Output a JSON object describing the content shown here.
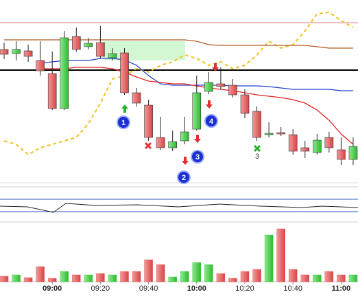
{
  "chart_data": {
    "type": "candlestick",
    "categories": [
      null,
      null,
      null,
      null,
      "09:00",
      null,
      null,
      null,
      "09:20",
      null,
      null,
      null,
      "09:40",
      null,
      null,
      null,
      "10:00",
      null,
      null,
      null,
      "10:20",
      null,
      null,
      null,
      "10:40",
      null,
      null,
      null,
      "11:00",
      null
    ],
    "open": [
      198,
      192,
      196,
      182,
      163,
      112,
      217,
      202,
      208,
      186,
      193,
      135,
      117,
      70,
      55,
      65,
      82,
      137,
      148,
      146,
      132,
      108,
      74,
      77,
      74,
      55,
      48,
      70,
      52,
      38
    ],
    "high": [
      208,
      210,
      205,
      210,
      195,
      225,
      230,
      215,
      232,
      200,
      200,
      142,
      125,
      100,
      80,
      100,
      160,
      165,
      172,
      155,
      140,
      115,
      92,
      85,
      82,
      65,
      75,
      78,
      70,
      70
    ],
    "low": [
      184,
      182,
      180,
      160,
      110,
      110,
      195,
      198,
      185,
      182,
      132,
      115,
      65,
      52,
      50,
      60,
      80,
      133,
      140,
      128,
      98,
      65,
      70,
      72,
      45,
      40,
      45,
      48,
      30,
      30
    ],
    "close": [
      191,
      198,
      188,
      167,
      112,
      215,
      198,
      207,
      188,
      192,
      135,
      120,
      70,
      55,
      64,
      78,
      135,
      150,
      144,
      132,
      105,
      70,
      76,
      75,
      50,
      50,
      66,
      55,
      38,
      57
    ],
    "volume": [
      8,
      10,
      6,
      22,
      5,
      15,
      10,
      10,
      12,
      10,
      15,
      15,
      32,
      25,
      7,
      15,
      28,
      25,
      12,
      5,
      15,
      18,
      68,
      77,
      18,
      10,
      10,
      15,
      10,
      10
    ],
    "up_color": "#3fcf3f",
    "down_color": "#e25b5b",
    "ylim": [
      0,
      270
    ],
    "volume_ylim": [
      0,
      90
    ],
    "series": [
      {
        "color": "#f0c020",
        "dashed": true,
        "values": [
          65,
          60,
          45,
          55,
          60,
          65,
          70,
          90,
          120,
          155,
          160,
          170,
          165,
          175,
          180,
          190,
          185,
          175,
          180,
          170,
          175,
          190,
          210,
          200,
          205,
          225,
          250,
          252,
          240,
          230
        ]
      },
      {
        "color": "#2040d0",
        "values": [
          null,
          null,
          null,
          178,
          180,
          182,
          182,
          182,
          185,
          185,
          183,
          175,
          160,
          148,
          146,
          146,
          146,
          146,
          146,
          145,
          145,
          145,
          144,
          142,
          140,
          140,
          140,
          140,
          138,
          138
        ]
      },
      {
        "color": "#e02020",
        "values": [
          null,
          null,
          null,
          170,
          170,
          170,
          172,
          172,
          172,
          170,
          165,
          158,
          152,
          150,
          148,
          148,
          145,
          142,
          140,
          138,
          135,
          132,
          130,
          128,
          125,
          120,
          110,
          95,
          75,
          60
        ]
      },
      {
        "color": "#b05a20",
        "values": [
          212,
          212,
          212,
          212,
          212,
          212,
          212,
          212,
          212,
          212,
          212,
          212,
          212,
          212,
          212,
          212,
          210,
          205,
          204,
          204,
          204,
          204,
          204,
          204,
          204,
          204,
          202,
          200,
          200,
          200
        ]
      }
    ],
    "hlines": [
      {
        "value": 168,
        "color": "#000000"
      },
      {
        "value": 237,
        "color": "#e08080"
      }
    ],
    "annotations": [
      "1",
      "2",
      "3",
      "4",
      "3"
    ]
  }
}
